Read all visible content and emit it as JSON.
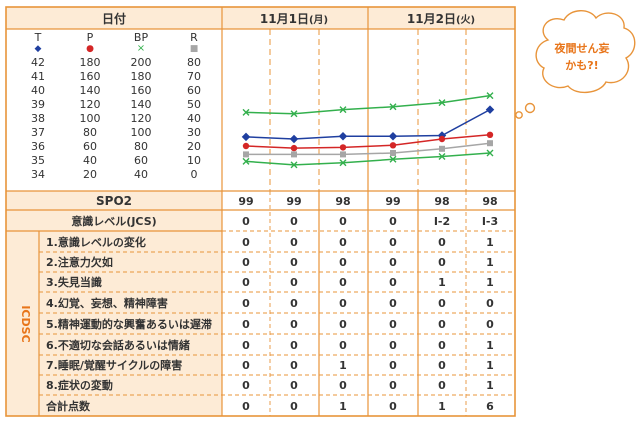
{
  "header": {
    "date_label": "日付",
    "days": [
      {
        "date": "11月1日",
        "weekday": "(月)"
      },
      {
        "date": "11月2日",
        "weekday": "(火)"
      }
    ]
  },
  "vitals_legend": [
    {
      "key": "T",
      "symbol": "◆",
      "color": "#1f3fa0",
      "scale": [
        "42",
        "41",
        "40",
        "39",
        "38",
        "37",
        "36",
        "35",
        "34"
      ]
    },
    {
      "key": "P",
      "symbol": "●",
      "color": "#d42626",
      "scale": [
        "180",
        "160",
        "140",
        "120",
        "100",
        "80",
        "60",
        "40",
        "20"
      ]
    },
    {
      "key": "BP",
      "symbol": "×",
      "color": "#33b04d",
      "scale": [
        "200",
        "180",
        "160",
        "140",
        "120",
        "100",
        "80",
        "60",
        "40"
      ]
    },
    {
      "key": "R",
      "symbol": "■",
      "color": "#a6a6a6",
      "scale": [
        "80",
        "70",
        "60",
        "50",
        "40",
        "30",
        "20",
        "10",
        "0"
      ]
    }
  ],
  "chart_data": {
    "type": "line",
    "x": [
      1,
      2,
      3,
      4,
      5,
      6
    ],
    "series": [
      {
        "name": "T",
        "axis_min": 34,
        "axis_max": 42,
        "values": [
          36.65,
          36.5,
          36.7,
          36.7,
          36.75,
          38.6
        ],
        "color": "#1f3fa0"
      },
      {
        "name": "P",
        "axis_min": 20,
        "axis_max": 180,
        "values": [
          60,
          57,
          58,
          61,
          70,
          76
        ],
        "color": "#d42626"
      },
      {
        "name": "BP",
        "axis_min": 40,
        "axis_max": 200,
        "values": [
          128,
          126,
          132,
          136,
          142,
          152
        ],
        "color": "#33b04d"
      },
      {
        "name": "BP",
        "axis_min": 40,
        "axis_max": 200,
        "values": [
          58,
          53,
          56,
          61,
          65,
          70
        ],
        "color": "#33b04d"
      },
      {
        "name": "R",
        "axis_min": 0,
        "axis_max": 80,
        "values": [
          14,
          14,
          14,
          15,
          18,
          22
        ],
        "color": "#a6a6a6"
      }
    ]
  },
  "spo2": {
    "label": "SPO2",
    "values": [
      "99",
      "99",
      "98",
      "99",
      "98",
      "98"
    ]
  },
  "jcs": {
    "label": "意識レベル(JCS)",
    "values": [
      "0",
      "0",
      "0",
      "0",
      "I-2",
      "I-3"
    ]
  },
  "icdsc": {
    "side_label": "ICDSC",
    "items": [
      {
        "label": "1.意識レベルの変化",
        "values": [
          "0",
          "0",
          "0",
          "0",
          "0",
          "1"
        ]
      },
      {
        "label": "2.注意力欠如",
        "values": [
          "0",
          "0",
          "0",
          "0",
          "0",
          "1"
        ]
      },
      {
        "label": "3.失見当識",
        "values": [
          "0",
          "0",
          "0",
          "0",
          "1",
          "1"
        ]
      },
      {
        "label": "4.幻覚、妄想、精神障害",
        "values": [
          "0",
          "0",
          "0",
          "0",
          "0",
          "0"
        ]
      },
      {
        "label": "5.精神運動的な興奮あるいは遅滞",
        "values": [
          "0",
          "0",
          "0",
          "0",
          "0",
          "0"
        ]
      },
      {
        "label": "6.不適切な会話あるいは情緒",
        "values": [
          "0",
          "0",
          "0",
          "0",
          "0",
          "1"
        ]
      },
      {
        "label": "7.睡眠/覚醒サイクルの障害",
        "values": [
          "0",
          "0",
          "1",
          "0",
          "0",
          "1"
        ]
      },
      {
        "label": "8.症状の変動",
        "values": [
          "0",
          "0",
          "0",
          "0",
          "0",
          "1"
        ]
      }
    ],
    "total": {
      "label": "合計点数",
      "values": [
        "0",
        "0",
        "1",
        "0",
        "1",
        "6"
      ]
    }
  },
  "callout": {
    "line1": "夜間せん妄",
    "line2": "かも?!",
    "color": "#e8751a"
  },
  "colors": {
    "border": "#e8943a",
    "fill": "#fdebd6",
    "dash": "#e8943a"
  }
}
